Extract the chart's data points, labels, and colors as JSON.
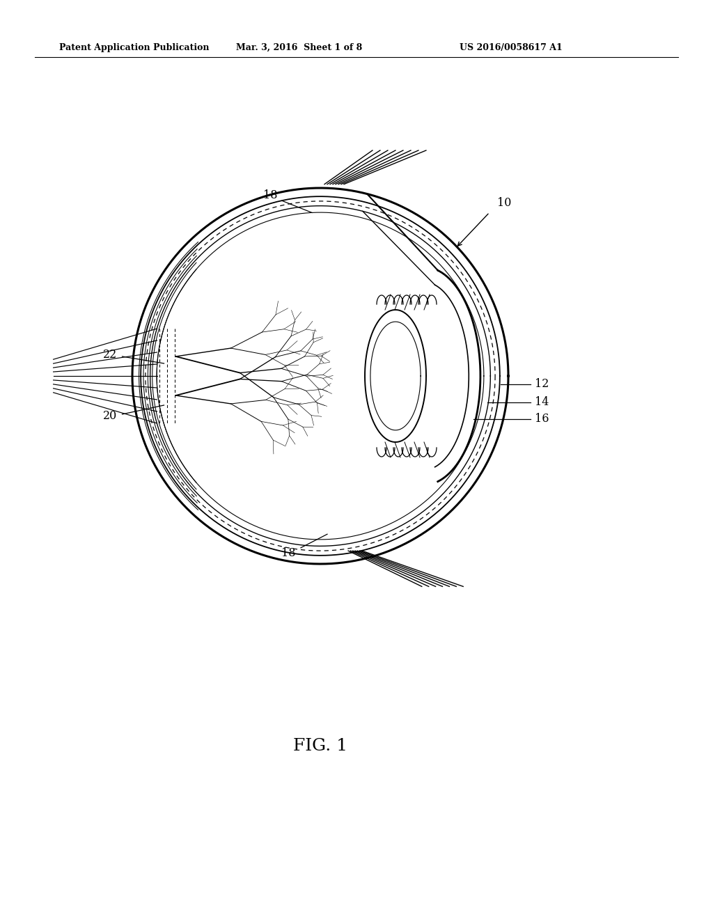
{
  "header_left": "Patent Application Publication",
  "header_mid": "Mar. 3, 2016  Sheet 1 of 8",
  "header_right": "US 2016/0058617 A1",
  "background_color": "#ffffff",
  "line_color": "#000000",
  "fig_label": "FIG. 1"
}
